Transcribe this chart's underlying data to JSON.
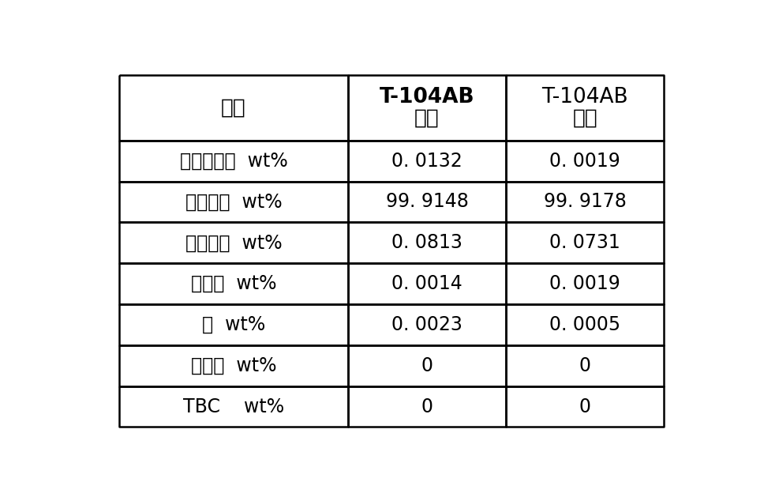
{
  "col0_header": "名称",
  "col1_header_line1": "T-104AB",
  "col1_header_line2": "进料",
  "col2_header_line1": "T-104AB",
  "col2_header_line2": "出料",
  "rows": [
    [
      "低沸点杂质  wt%",
      "0. 0132",
      "0. 0019"
    ],
    [
      "异戊二烯  wt%",
      "99. 9148",
      "99. 9178"
    ],
    [
      "己烷馏分  wt%",
      "0. 0813",
      "0. 0731"
    ],
    [
      "二聚物  wt%",
      "0. 0014",
      "0. 0019"
    ],
    [
      "水  wt%",
      "0. 0023",
      "0. 0005"
    ],
    [
      "高沸物  wt%",
      "0",
      "0"
    ],
    [
      "TBC    wt%",
      "0",
      "0"
    ]
  ],
  "bg_color": "#ffffff",
  "line_color": "#000000",
  "text_color": "#000000",
  "col1_bold": true,
  "fig_width": 9.68,
  "fig_height": 6.29
}
